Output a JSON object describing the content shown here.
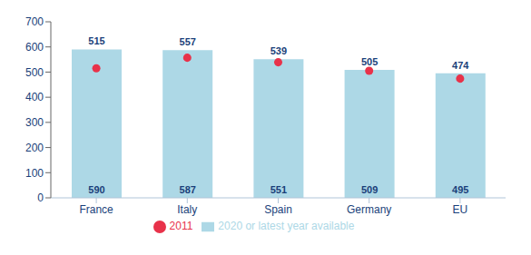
{
  "chart_data": {
    "type": "bar",
    "categories": [
      "France",
      "Italy",
      "Spain",
      "Germany",
      "EU"
    ],
    "series": [
      {
        "name": "2020 or latest year available",
        "type": "bar",
        "color": "#add8e6",
        "values": [
          590,
          587,
          551,
          509,
          495
        ]
      },
      {
        "name": "2011",
        "type": "scatter",
        "color": "#e8324a",
        "values": [
          515,
          557,
          539,
          505,
          474
        ]
      }
    ],
    "ylim": [
      0,
      700
    ],
    "yticks": [
      0,
      100,
      200,
      300,
      400,
      500,
      600,
      700
    ],
    "grid": false,
    "legend": "bottom",
    "data_labels": true
  }
}
